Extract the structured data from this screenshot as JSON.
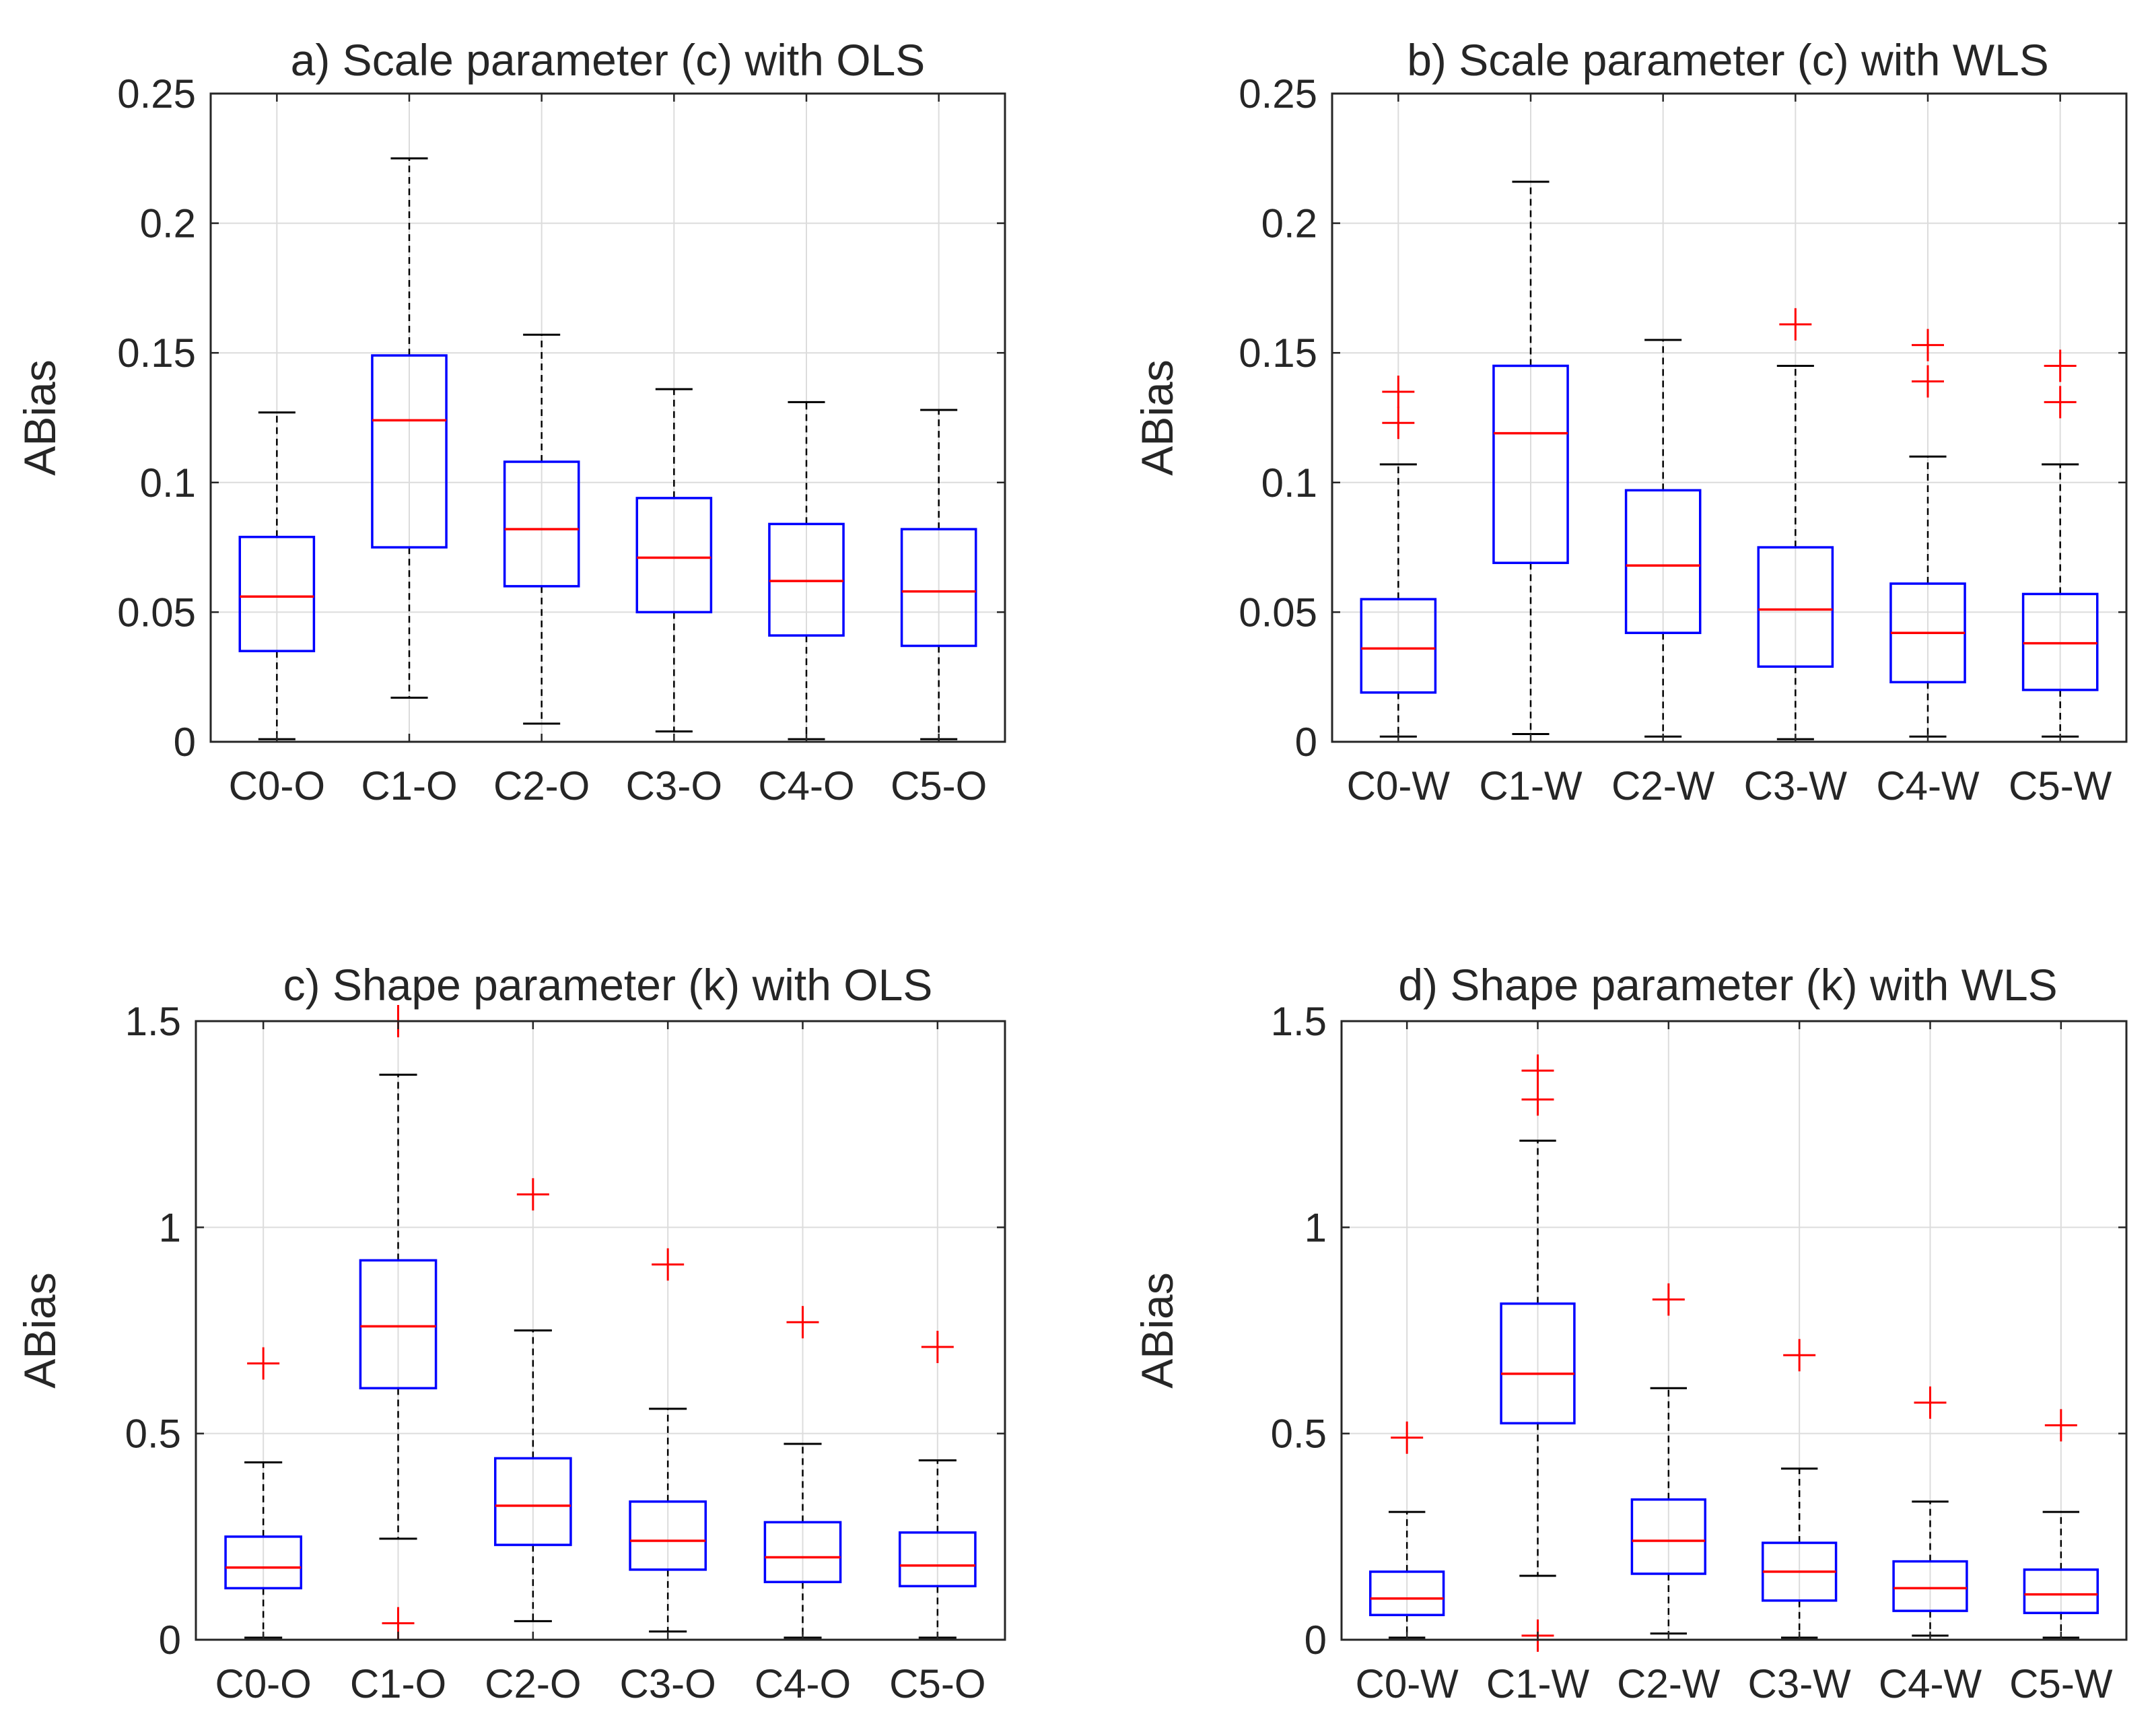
{
  "chart_data": [
    {
      "type": "boxplot",
      "title": "a) Scale parameter (c) with OLS",
      "ylabel": "ABias",
      "xlabel": "",
      "ylim": [
        0,
        0.25
      ],
      "yticks": [
        0,
        0.05,
        0.1,
        0.15,
        0.2,
        0.25
      ],
      "ytick_labels": [
        "0",
        "0.05",
        "0.1",
        "0.15",
        "0.2",
        "0.25"
      ],
      "grid": true,
      "categories": [
        "C0-O",
        "C1-O",
        "C2-O",
        "C3-O",
        "C4-O",
        "C5-O"
      ],
      "boxes": [
        {
          "whisker_low": 0.001,
          "q1": 0.035,
          "median": 0.056,
          "q3": 0.079,
          "whisker_high": 0.127,
          "outliers": []
        },
        {
          "whisker_low": 0.017,
          "q1": 0.075,
          "median": 0.124,
          "q3": 0.149,
          "whisker_high": 0.225,
          "outliers": []
        },
        {
          "whisker_low": 0.007,
          "q1": 0.06,
          "median": 0.082,
          "q3": 0.108,
          "whisker_high": 0.157,
          "outliers": []
        },
        {
          "whisker_low": 0.004,
          "q1": 0.05,
          "median": 0.071,
          "q3": 0.094,
          "whisker_high": 0.136,
          "outliers": []
        },
        {
          "whisker_low": 0.001,
          "q1": 0.041,
          "median": 0.062,
          "q3": 0.084,
          "whisker_high": 0.131,
          "outliers": []
        },
        {
          "whisker_low": 0.001,
          "q1": 0.037,
          "median": 0.058,
          "q3": 0.082,
          "whisker_high": 0.128,
          "outliers": []
        }
      ]
    },
    {
      "type": "boxplot",
      "title": "b) Scale parameter (c) with WLS",
      "ylabel": "ABias",
      "xlabel": "",
      "ylim": [
        0,
        0.25
      ],
      "yticks": [
        0,
        0.05,
        0.1,
        0.15,
        0.2,
        0.25
      ],
      "ytick_labels": [
        "0",
        "0.05",
        "0.1",
        "0.15",
        "0.2",
        "0.25"
      ],
      "grid": true,
      "categories": [
        "C0-W",
        "C1-W",
        "C2-W",
        "C3-W",
        "C4-W",
        "C5-W"
      ],
      "boxes": [
        {
          "whisker_low": 0.002,
          "q1": 0.019,
          "median": 0.036,
          "q3": 0.055,
          "whisker_high": 0.107,
          "outliers": [
            0.123,
            0.135
          ]
        },
        {
          "whisker_low": 0.003,
          "q1": 0.069,
          "median": 0.119,
          "q3": 0.145,
          "whisker_high": 0.216,
          "outliers": []
        },
        {
          "whisker_low": 0.002,
          "q1": 0.042,
          "median": 0.068,
          "q3": 0.097,
          "whisker_high": 0.155,
          "outliers": []
        },
        {
          "whisker_low": 0.001,
          "q1": 0.029,
          "median": 0.051,
          "q3": 0.075,
          "whisker_high": 0.145,
          "outliers": [
            0.161
          ]
        },
        {
          "whisker_low": 0.002,
          "q1": 0.023,
          "median": 0.042,
          "q3": 0.061,
          "whisker_high": 0.11,
          "outliers": [
            0.139,
            0.153
          ]
        },
        {
          "whisker_low": 0.002,
          "q1": 0.02,
          "median": 0.038,
          "q3": 0.057,
          "whisker_high": 0.107,
          "outliers": [
            0.131,
            0.145
          ]
        }
      ]
    },
    {
      "type": "boxplot",
      "title": "c) Shape parameter (k) with OLS",
      "ylabel": "ABias",
      "xlabel": "",
      "ylim": [
        0,
        1.5
      ],
      "yticks": [
        0,
        0.5,
        1,
        1.5
      ],
      "ytick_labels": [
        "0",
        "0.5",
        "1",
        "1.5"
      ],
      "grid": true,
      "categories": [
        "C0-O",
        "C1-O",
        "C2-O",
        "C3-O",
        "C4-O",
        "C5-O"
      ],
      "boxes": [
        {
          "whisker_low": 0.005,
          "q1": 0.125,
          "median": 0.175,
          "q3": 0.25,
          "whisker_high": 0.43,
          "outliers": [
            0.67
          ]
        },
        {
          "whisker_low": 0.245,
          "q1": 0.61,
          "median": 0.76,
          "q3": 0.92,
          "whisker_high": 1.37,
          "outliers": [
            0.04,
            1.5
          ]
        },
        {
          "whisker_low": 0.045,
          "q1": 0.23,
          "median": 0.325,
          "q3": 0.44,
          "whisker_high": 0.75,
          "outliers": [
            1.08
          ]
        },
        {
          "whisker_low": 0.02,
          "q1": 0.17,
          "median": 0.24,
          "q3": 0.335,
          "whisker_high": 0.56,
          "outliers": [
            0.91
          ]
        },
        {
          "whisker_low": 0.005,
          "q1": 0.14,
          "median": 0.2,
          "q3": 0.285,
          "whisker_high": 0.475,
          "outliers": [
            0.77
          ]
        },
        {
          "whisker_low": 0.005,
          "q1": 0.13,
          "median": 0.18,
          "q3": 0.26,
          "whisker_high": 0.435,
          "outliers": [
            0.71
          ]
        }
      ]
    },
    {
      "type": "boxplot",
      "title": "d) Shape parameter (k) with WLS",
      "ylabel": "ABias",
      "xlabel": "",
      "ylim": [
        0,
        1.5
      ],
      "yticks": [
        0,
        0.5,
        1,
        1.5
      ],
      "ytick_labels": [
        "0",
        "0.5",
        "1",
        "1.5"
      ],
      "grid": true,
      "categories": [
        "C0-W",
        "C1-W",
        "C2-W",
        "C3-W",
        "C4-W",
        "C5-W"
      ],
      "boxes": [
        {
          "whisker_low": 0.005,
          "q1": 0.06,
          "median": 0.1,
          "q3": 0.165,
          "whisker_high": 0.31,
          "outliers": [
            0.49
          ]
        },
        {
          "whisker_low": 0.155,
          "q1": 0.525,
          "median": 0.645,
          "q3": 0.815,
          "whisker_high": 1.21,
          "outliers": [
            0.01,
            1.31,
            1.38
          ]
        },
        {
          "whisker_low": 0.015,
          "q1": 0.16,
          "median": 0.24,
          "q3": 0.34,
          "whisker_high": 0.61,
          "outliers": [
            0.825
          ]
        },
        {
          "whisker_low": 0.005,
          "q1": 0.095,
          "median": 0.165,
          "q3": 0.235,
          "whisker_high": 0.415,
          "outliers": [
            0.69
          ]
        },
        {
          "whisker_low": 0.01,
          "q1": 0.07,
          "median": 0.125,
          "q3": 0.19,
          "whisker_high": 0.335,
          "outliers": [
            0.575
          ]
        },
        {
          "whisker_low": 0.005,
          "q1": 0.065,
          "median": 0.11,
          "q3": 0.17,
          "whisker_high": 0.31,
          "outliers": [
            0.52
          ]
        }
      ]
    }
  ],
  "colors": {
    "box": "#0000ff",
    "median": "#ff0000",
    "outlier": "#ff0000",
    "whisker": "#000000",
    "grid": "#dcdcdc",
    "axes": "#262626"
  }
}
